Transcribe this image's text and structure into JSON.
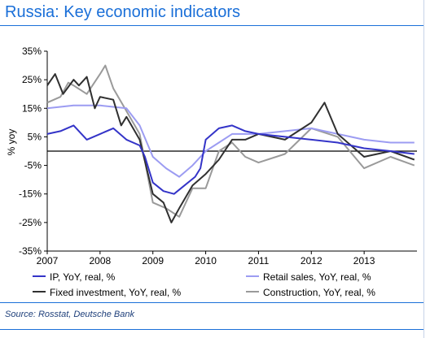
{
  "title": "Russia: Key economic indicators",
  "source": "Source: Rosstat, Deutsche Bank",
  "chart_data": {
    "type": "line",
    "ylabel": "% yoy",
    "ylim": [
      -35,
      35
    ],
    "yticks": [
      "35%",
      "25%",
      "15%",
      "5%",
      "-5%",
      "-15%",
      "-25%",
      "-35%"
    ],
    "xlim": [
      2007,
      2014
    ],
    "xticks": [
      "2007",
      "2008",
      "2009",
      "2010",
      "2011",
      "2012",
      "2013"
    ],
    "legend_position": "bottom",
    "series": [
      {
        "name": "IP, YoY, real, %",
        "color": "#3434c8",
        "x": [
          2007.0,
          2007.25,
          2007.5,
          2007.75,
          2008.0,
          2008.25,
          2008.5,
          2008.75,
          2008.85,
          2009.0,
          2009.2,
          2009.4,
          2009.6,
          2009.8,
          2009.9,
          2010.0,
          2010.25,
          2010.5,
          2010.75,
          2011.0,
          2011.5,
          2012.0,
          2012.5,
          2013.0,
          2013.5,
          2013.95
        ],
        "values": [
          6,
          7,
          9,
          4,
          6,
          8,
          4,
          2,
          -2,
          -11,
          -14,
          -15,
          -12,
          -9,
          -6,
          4,
          8,
          9,
          7,
          6,
          5,
          4,
          3,
          1,
          0,
          -1
        ]
      },
      {
        "name": "Retail sales, YoY, real, %",
        "color": "#9c9cf2",
        "x": [
          2007.0,
          2007.5,
          2008.0,
          2008.5,
          2008.75,
          2009.0,
          2009.25,
          2009.5,
          2009.75,
          2010.0,
          2010.25,
          2010.5,
          2011.0,
          2011.5,
          2012.0,
          2012.5,
          2013.0,
          2013.5,
          2013.95
        ],
        "values": [
          15,
          16,
          16,
          15,
          9,
          -2,
          -6,
          -9,
          -5,
          0,
          3,
          6,
          6,
          7,
          8,
          6,
          4,
          3,
          3
        ]
      },
      {
        "name": "Fixed investment, YoY, real, %",
        "color": "#303030",
        "x": [
          2007.0,
          2007.15,
          2007.3,
          2007.5,
          2007.6,
          2007.75,
          2007.9,
          2008.0,
          2008.25,
          2008.4,
          2008.5,
          2008.75,
          2009.0,
          2009.2,
          2009.35,
          2009.5,
          2009.75,
          2010.0,
          2010.25,
          2010.5,
          2010.75,
          2011.0,
          2011.5,
          2012.0,
          2012.25,
          2012.5,
          2013.0,
          2013.5,
          2013.95
        ],
        "values": [
          23,
          27,
          20,
          25,
          23,
          26,
          15,
          19,
          18,
          9,
          12,
          4,
          -15,
          -18,
          -25,
          -20,
          -12,
          -8,
          -3,
          4,
          4,
          6,
          4,
          10,
          17,
          6,
          -2,
          0,
          -3
        ]
      },
      {
        "name": "Construction, YoY, real, %",
        "color": "#9a9a9a",
        "x": [
          2007.0,
          2007.25,
          2007.4,
          2007.5,
          2007.75,
          2008.0,
          2008.1,
          2008.25,
          2008.5,
          2008.75,
          2009.0,
          2009.25,
          2009.5,
          2009.75,
          2010.0,
          2010.25,
          2010.5,
          2010.75,
          2011.0,
          2011.5,
          2012.0,
          2012.5,
          2013.0,
          2013.5,
          2013.95
        ],
        "values": [
          17,
          19,
          24,
          23,
          20,
          27,
          30,
          22,
          14,
          6,
          -18,
          -20,
          -23,
          -13,
          -13,
          0,
          3,
          -2,
          -4,
          -1,
          8,
          5,
          -6,
          -2,
          -5
        ]
      }
    ]
  }
}
